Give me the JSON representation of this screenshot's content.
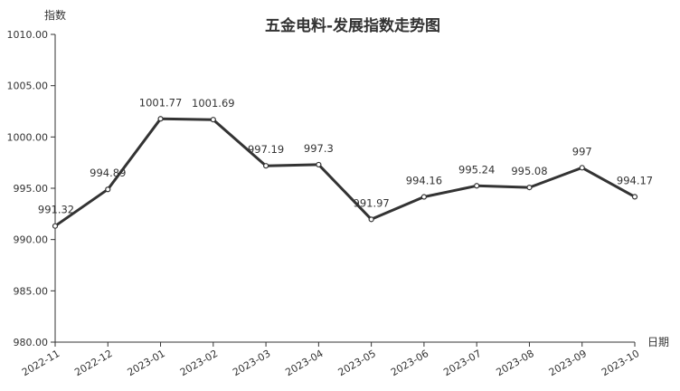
{
  "chart_data": {
    "type": "line",
    "title": "五金电料-发展指数走势图",
    "ylabel": "指数",
    "xlabel": "日期",
    "ylim": [
      980,
      1010
    ],
    "yticks": [
      "980.00",
      "985.00",
      "990.00",
      "995.00",
      "1000.00",
      "1005.00",
      "1010.00"
    ],
    "ytick_values": [
      980,
      985,
      990,
      995,
      1000,
      1005,
      1010
    ],
    "categories": [
      "2022-11",
      "2022-12",
      "2023-01",
      "2023-02",
      "2023-03",
      "2023-04",
      "2023-05",
      "2023-06",
      "2023-07",
      "2023-08",
      "2023-09",
      "2023-10"
    ],
    "values": [
      991.32,
      994.89,
      1001.77,
      1001.69,
      997.19,
      997.3,
      991.97,
      994.16,
      995.24,
      995.08,
      997,
      994.17
    ],
    "value_labels": [
      "991.32",
      "994.89",
      "1001.77",
      "1001.69",
      "997.19",
      "997.3",
      "991.97",
      "994.16",
      "995.24",
      "995.08",
      "997",
      "994.17"
    ],
    "grid": false,
    "legend": "none",
    "line_color": "#333333"
  }
}
